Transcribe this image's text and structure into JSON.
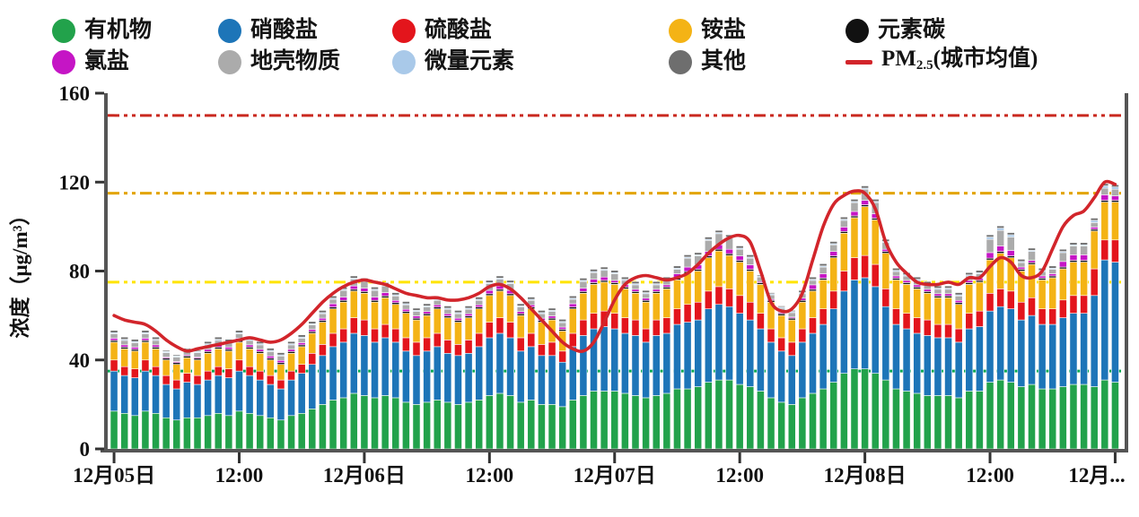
{
  "legend": {
    "items": [
      {
        "key": "organic",
        "label": "有机物",
        "color": "#22a24b",
        "marker": "dot",
        "row": 0,
        "col": 0
      },
      {
        "key": "nitrate",
        "label": "硝酸盐",
        "color": "#1d75b8",
        "marker": "dot",
        "row": 0,
        "col": 1
      },
      {
        "key": "sulfate",
        "label": "硫酸盐",
        "color": "#e3151c",
        "marker": "dot",
        "row": 0,
        "col": 2
      },
      {
        "key": "ammonium",
        "label": "铵盐",
        "color": "#f4b315",
        "marker": "dot",
        "row": 0,
        "col": 3
      },
      {
        "key": "elemental-carbon",
        "label": "元素碳",
        "color": "#111111",
        "marker": "dot",
        "row": 0,
        "col": 4
      },
      {
        "key": "chloride",
        "label": "氯盐",
        "color": "#c515c5",
        "marker": "dot",
        "row": 1,
        "col": 0
      },
      {
        "key": "crustal",
        "label": "地壳物质",
        "color": "#ababab",
        "marker": "dot",
        "row": 1,
        "col": 1
      },
      {
        "key": "trace-elements",
        "label": "微量元素",
        "color": "#a9c9e9",
        "marker": "dot",
        "row": 1,
        "col": 2
      },
      {
        "key": "other",
        "label": "其他",
        "color": "#6e6e6e",
        "marker": "dot",
        "row": 1,
        "col": 3
      },
      {
        "key": "pm25-line",
        "label": "PM2.5(城市均值)",
        "label_prefix": "PM",
        "label_sub": "2.5",
        "label_suffix": "(城市均值)",
        "color": "#d2252b",
        "marker": "line",
        "row": 1,
        "col": 4
      }
    ]
  },
  "axes": {
    "y_title": "浓度（μg/m³）",
    "y_ticks": [
      0,
      40,
      80,
      120,
      160
    ],
    "y_max": 160,
    "x_tick_labels": [
      "12月05日",
      "12:00",
      "12月06日",
      "12:00",
      "12月07日",
      "12:00",
      "12月08日",
      "12:00",
      "12月..."
    ],
    "x_tick_hours": [
      0,
      12,
      24,
      36,
      48,
      60,
      72,
      84,
      96
    ]
  },
  "thresholds": [
    {
      "value": 35,
      "color": "#00a851"
    },
    {
      "value": 75,
      "color": "#ffe400"
    },
    {
      "value": 115,
      "color": "#e2a400"
    },
    {
      "value": 150,
      "color": "#c9281f"
    }
  ],
  "chart_data": {
    "type": "bar",
    "stacked": true,
    "x_start": "12月05日 00:00",
    "x_step_hours": 1,
    "n_points": 97,
    "ylim": [
      0,
      160
    ],
    "grid": false,
    "legend_position": "top",
    "series": [
      {
        "key": "organic",
        "name": "有机物",
        "color": "#22a24b",
        "values": [
          17,
          16,
          15,
          17,
          16,
          14,
          13,
          14,
          14,
          15,
          16,
          15,
          17,
          16,
          15,
          14,
          13,
          15,
          16,
          18,
          20,
          22,
          23,
          25,
          24,
          23,
          24,
          23,
          21,
          20,
          21,
          22,
          21,
          20,
          21,
          22,
          24,
          25,
          24,
          21,
          22,
          20,
          20,
          19,
          22,
          24,
          26,
          26,
          26,
          25,
          24,
          23,
          24,
          25,
          27,
          27,
          28,
          30,
          31,
          31,
          29,
          28,
          26,
          23,
          21,
          20,
          23,
          25,
          27,
          30,
          34,
          36,
          36,
          34,
          31,
          27,
          26,
          25,
          24,
          24,
          24,
          23,
          26,
          26,
          30,
          31,
          30,
          28,
          29,
          27,
          27,
          28,
          29,
          29,
          28,
          31,
          30
        ]
      },
      {
        "key": "nitrate",
        "name": "硝酸盐",
        "color": "#1d75b8",
        "values": [
          18,
          17,
          17,
          18,
          17,
          15,
          14,
          16,
          15,
          16,
          17,
          17,
          18,
          17,
          16,
          15,
          14,
          16,
          18,
          20,
          22,
          24,
          25,
          27,
          27,
          25,
          26,
          25,
          23,
          22,
          23,
          24,
          22,
          22,
          22,
          24,
          26,
          27,
          26,
          23,
          24,
          22,
          22,
          20,
          24,
          27,
          28,
          29,
          28,
          27,
          27,
          25,
          27,
          27,
          29,
          30,
          30,
          33,
          34,
          33,
          32,
          30,
          28,
          25,
          23,
          22,
          25,
          27,
          29,
          33,
          37,
          40,
          41,
          39,
          33,
          29,
          28,
          27,
          27,
          26,
          26,
          25,
          28,
          29,
          32,
          33,
          33,
          30,
          31,
          29,
          29,
          31,
          32,
          32,
          41,
          54,
          54
        ]
      },
      {
        "key": "sulfate",
        "name": "硫酸盐",
        "color": "#e3151c",
        "values": [
          5,
          4,
          4,
          5,
          4,
          4,
          4,
          4,
          4,
          4,
          4,
          4,
          5,
          4,
          4,
          4,
          4,
          4,
          4,
          5,
          5,
          6,
          6,
          7,
          7,
          6,
          6,
          6,
          6,
          6,
          6,
          6,
          6,
          5,
          6,
          6,
          7,
          7,
          7,
          6,
          6,
          5,
          6,
          5,
          6,
          7,
          7,
          7,
          7,
          7,
          7,
          6,
          7,
          7,
          7,
          8,
          8,
          8,
          8,
          8,
          8,
          8,
          7,
          6,
          6,
          6,
          6,
          7,
          7,
          8,
          9,
          10,
          10,
          10,
          8,
          7,
          7,
          7,
          7,
          6,
          6,
          6,
          7,
          7,
          8,
          8,
          8,
          8,
          8,
          7,
          7,
          8,
          8,
          8,
          12,
          9,
          10
        ]
      },
      {
        "key": "ammonium",
        "name": "铵盐",
        "color": "#f4b315",
        "values": [
          8,
          8,
          8,
          8,
          8,
          7,
          7,
          7,
          7,
          8,
          8,
          8,
          8,
          8,
          8,
          7,
          7,
          8,
          8,
          9,
          10,
          11,
          12,
          12,
          12,
          12,
          12,
          11,
          11,
          10,
          10,
          11,
          10,
          10,
          10,
          11,
          12,
          12,
          12,
          10,
          11,
          10,
          10,
          9,
          11,
          12,
          13,
          13,
          13,
          13,
          12,
          12,
          12,
          13,
          13,
          14,
          14,
          15,
          16,
          15,
          15,
          14,
          13,
          12,
          10,
          10,
          12,
          12,
          13,
          15,
          17,
          18,
          22,
          20,
          16,
          13,
          13,
          13,
          12,
          12,
          12,
          11,
          13,
          13,
          15,
          16,
          15,
          14,
          15,
          13,
          14,
          14,
          15,
          15,
          17,
          17,
          17
        ]
      },
      {
        "key": "elemental-carbon",
        "name": "元素碳",
        "color": "#111111",
        "values": [
          0.8,
          0.8,
          0.8,
          0.8,
          0.8,
          0.8,
          0.8,
          0.8,
          0.8,
          0.8,
          0.8,
          0.8,
          0.8,
          0.8,
          0.8,
          0.8,
          0.8,
          0.8,
          0.8,
          0.8,
          0.8,
          0.8,
          0.8,
          0.8,
          0.8,
          0.8,
          0.8,
          0.8,
          0.8,
          0.8,
          0.8,
          0.8,
          0.8,
          0.8,
          0.8,
          0.8,
          0.8,
          0.8,
          0.8,
          0.8,
          0.8,
          0.8,
          0.8,
          0.8,
          0.8,
          0.8,
          0.8,
          0.8,
          0.8,
          0.8,
          0.8,
          0.8,
          0.8,
          0.8,
          0.8,
          0.8,
          0.8,
          0.8,
          0.8,
          0.8,
          0.8,
          0.8,
          0.8,
          0.8,
          0.8,
          0.8,
          0.8,
          0.8,
          0.8,
          0.8,
          0.8,
          0.8,
          0.8,
          0.8,
          0.8,
          0.8,
          0.8,
          0.8,
          0.8,
          0.8,
          0.8,
          0.8,
          0.8,
          0.8,
          0.8,
          0.8,
          0.8,
          0.8,
          0.8,
          0.8,
          0.8,
          0.8,
          0.8,
          0.8,
          0.8,
          0.8,
          0.8
        ]
      },
      {
        "key": "chloride",
        "name": "氯盐",
        "color": "#c515c5",
        "values": [
          1,
          1,
          1,
          1,
          1,
          0.5,
          0.5,
          0.5,
          0.5,
          1,
          1,
          1,
          1,
          1,
          1,
          1,
          1,
          1,
          1,
          1,
          1,
          1.5,
          1.5,
          1.5,
          1.5,
          1.5,
          1.5,
          1,
          1,
          1,
          1,
          1,
          1,
          1,
          1,
          1,
          1.5,
          1.5,
          1.5,
          1,
          1,
          1,
          1,
          1,
          1.5,
          1.5,
          1.5,
          1.5,
          1,
          1,
          1,
          1,
          1,
          1,
          2,
          2,
          2,
          2,
          2,
          2,
          2,
          2,
          0.5,
          0.5,
          0.5,
          0.5,
          1,
          2,
          2,
          2,
          2,
          2,
          2,
          2,
          1,
          1,
          1,
          1,
          1,
          1,
          1,
          1,
          1,
          1,
          2.5,
          2.5,
          2.5,
          1,
          1,
          1,
          1,
          2.5,
          2.5,
          2.5,
          1,
          2.5,
          2
        ]
      },
      {
        "key": "crustal",
        "name": "地壳物质",
        "color": "#ababab",
        "values": [
          2,
          2,
          2,
          2,
          2,
          2,
          2,
          2,
          2,
          2,
          2,
          2,
          2,
          2,
          2,
          2,
          2,
          2,
          2,
          2,
          2,
          2,
          3,
          3,
          3,
          3,
          3,
          2,
          2,
          2,
          2,
          2,
          2,
          2,
          2,
          2,
          3,
          3,
          3,
          2,
          2,
          2,
          2,
          2,
          2,
          3,
          3,
          3,
          3,
          2,
          2,
          2,
          2,
          2,
          2,
          4,
          4,
          5,
          5,
          5,
          3,
          3,
          2,
          2,
          2,
          2,
          2,
          2,
          3,
          3,
          3,
          4,
          5,
          5,
          3,
          2,
          2,
          2,
          2,
          2,
          2,
          2,
          2,
          2,
          6,
          7,
          6,
          2,
          4,
          2,
          2,
          4,
          4,
          4,
          2,
          3,
          3
        ]
      },
      {
        "key": "trace-elements",
        "name": "微量元素",
        "color": "#a9c9e9",
        "values": [
          0.5,
          0.5,
          0.5,
          0.5,
          0.5,
          0.5,
          0.5,
          0.5,
          0.5,
          0.5,
          0.5,
          0.5,
          0.5,
          0.5,
          0.5,
          0.5,
          0.5,
          0.5,
          0.5,
          0.5,
          0.5,
          0.5,
          0.5,
          0.5,
          0.5,
          0.5,
          0.5,
          0.5,
          0.5,
          0.5,
          0.5,
          0.5,
          0.5,
          0.5,
          0.5,
          0.5,
          0.5,
          0.5,
          0.5,
          0.5,
          0.5,
          0.5,
          0.5,
          0.5,
          0.5,
          0.5,
          0.5,
          0.5,
          0.5,
          0.5,
          0.5,
          0.5,
          0.5,
          0.5,
          0.5,
          0.5,
          0.5,
          0.5,
          0.5,
          0.5,
          0.5,
          0.5,
          0.5,
          0.5,
          0.5,
          0.5,
          0.5,
          0.5,
          0.5,
          0.5,
          0.5,
          0.5,
          0.5,
          0.5,
          0.5,
          0.5,
          0.5,
          0.5,
          0.5,
          0.5,
          0.5,
          0.5,
          0.5,
          0.5,
          1,
          1,
          1,
          0.5,
          0.5,
          0.5,
          0.5,
          0.5,
          0.5,
          0.5,
          1,
          1,
          1
        ]
      },
      {
        "key": "other",
        "name": "其他",
        "color": "#6e6e6e",
        "values": [
          1,
          1,
          1,
          1,
          1,
          0.5,
          0.5,
          0.5,
          0.5,
          1,
          1,
          1,
          1,
          1,
          1,
          1,
          1,
          1,
          1,
          1,
          1,
          1,
          1,
          1,
          1,
          1,
          1,
          1,
          1,
          1,
          1,
          1,
          1,
          1,
          1,
          1,
          1,
          1,
          1,
          1,
          1,
          1,
          1,
          1,
          1,
          1,
          1,
          1,
          1,
          1,
          1,
          1,
          1,
          1,
          1,
          1,
          1,
          1,
          1,
          1,
          1,
          1,
          0.5,
          0.5,
          0.5,
          0.5,
          1,
          1,
          1,
          1,
          1,
          1,
          1,
          1,
          1,
          1,
          1,
          1,
          1,
          1,
          1,
          1,
          1,
          1,
          1,
          1,
          1,
          1,
          1,
          1,
          1,
          1,
          1,
          1,
          1,
          1,
          1
        ]
      }
    ],
    "line_series": {
      "key": "pm25",
      "name": "PM2.5(城市均值)",
      "color": "#d2252b",
      "values": [
        60,
        58,
        57,
        56,
        53,
        49,
        46,
        44,
        45,
        46,
        47,
        48,
        49,
        50,
        49,
        48,
        49,
        52,
        56,
        61,
        66,
        70,
        73,
        75,
        76,
        75,
        74,
        72,
        70,
        69,
        68,
        68,
        67,
        67,
        68,
        70,
        73,
        74,
        72,
        68,
        63,
        58,
        53,
        48,
        45,
        44,
        48,
        57,
        67,
        74,
        77,
        78,
        77,
        76,
        77,
        79,
        83,
        88,
        92,
        95,
        96,
        93,
        80,
        66,
        62,
        63,
        70,
        85,
        100,
        110,
        114,
        116,
        115,
        108,
        93,
        84,
        79,
        75,
        74,
        74,
        75,
        74,
        77,
        77,
        82,
        86,
        84,
        78,
        77,
        80,
        90,
        100,
        105,
        107,
        113,
        120,
        119
      ]
    },
    "bar_totals_estimate": [
      53,
      50,
      49,
      53,
      50,
      45,
      43,
      46,
      45,
      48,
      51,
      49,
      53,
      51,
      48,
      45,
      43,
      48,
      52,
      57,
      62,
      67,
      72,
      76,
      75,
      72,
      73,
      70,
      66,
      63,
      65,
      67,
      64,
      62,
      64,
      67,
      74,
      77,
      75,
      65,
      67,
      62,
      63,
      58,
      70,
      76,
      79,
      81,
      80,
      78,
      75,
      72,
      75,
      78,
      84,
      86,
      88,
      95,
      97,
      96,
      92,
      88,
      80,
      72,
      65,
      63,
      72,
      78,
      85,
      95,
      105,
      112,
      118,
      112,
      95,
      82,
      80,
      78,
      76,
      74,
      74,
      71,
      80,
      81,
      95,
      99,
      97,
      86,
      90,
      82,
      83,
      89,
      91,
      90,
      102,
      118,
      117
    ]
  }
}
